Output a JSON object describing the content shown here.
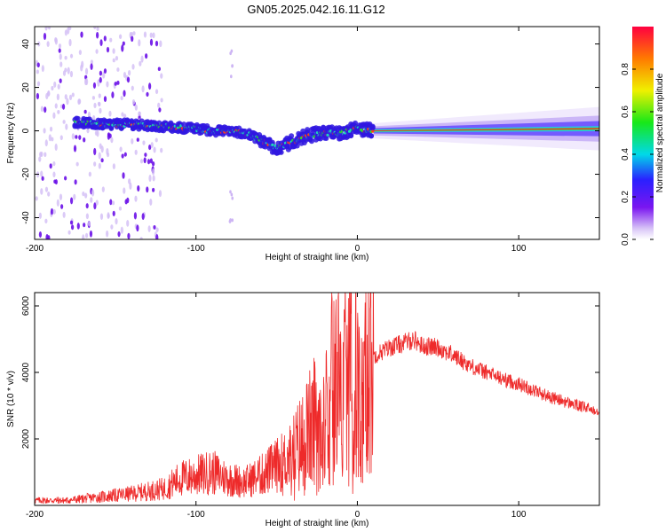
{
  "title": "GN05.2025.042.16.11.G12",
  "chart_data": [
    {
      "type": "heatmap",
      "xlabel": "Height of straight line (km)",
      "ylabel": "Frequency (Hz)",
      "xlim": [
        -200,
        150
      ],
      "ylim": [
        -50,
        48
      ],
      "xticks": [
        "-200",
        "-100",
        "0",
        "100"
      ],
      "yticks": [
        "-40",
        "-20",
        "0",
        "20",
        "40"
      ],
      "colorbar": {
        "label": "Normalized spectral amplitude",
        "range": [
          0,
          1
        ],
        "ticks": [
          "0.0",
          "0.2",
          "0.4",
          "0.6",
          "0.8"
        ]
      },
      "dominant_frequency_trace": {
        "x": [
          -175,
          -160,
          -140,
          -120,
          -100,
          -90,
          -80,
          -70,
          -60,
          -50,
          -40,
          -30,
          -20,
          -10,
          0,
          10,
          50,
          100,
          150
        ],
        "y": [
          4,
          3,
          3,
          2,
          1,
          0,
          0,
          -1,
          -4,
          -8,
          -5,
          -2,
          -1,
          -1,
          1,
          0,
          0,
          0,
          1
        ]
      },
      "grid": false
    },
    {
      "type": "line",
      "xlabel": "Height of straight line (km)",
      "ylabel": "SNR (10 * v/v)",
      "xlim": [
        -200,
        150
      ],
      "ylim": [
        0,
        6400
      ],
      "xticks": [
        "-200",
        "-100",
        "0",
        "100"
      ],
      "yticks": [
        "2000",
        "4000",
        "6000"
      ],
      "series": [
        {
          "color": "#ee2a2a",
          "x": [
            -200,
            -180,
            -160,
            -140,
            -120,
            -110,
            -100,
            -90,
            -80,
            -70,
            -60,
            -50,
            -40,
            -30,
            -25,
            -20,
            -15,
            -10,
            -5,
            0,
            10,
            20,
            30,
            35,
            40,
            50,
            60,
            70,
            80,
            90,
            100,
            110,
            120,
            130,
            140,
            150
          ],
          "y": [
            150,
            150,
            250,
            350,
            500,
            800,
            900,
            1000,
            800,
            700,
            900,
            1200,
            1500,
            2200,
            2600,
            3100,
            3600,
            3800,
            3800,
            3900,
            4500,
            4750,
            4900,
            5000,
            4800,
            4750,
            4500,
            4200,
            4000,
            3800,
            3650,
            3450,
            3250,
            3100,
            2950,
            2850
          ]
        }
      ],
      "grid": false
    }
  ]
}
